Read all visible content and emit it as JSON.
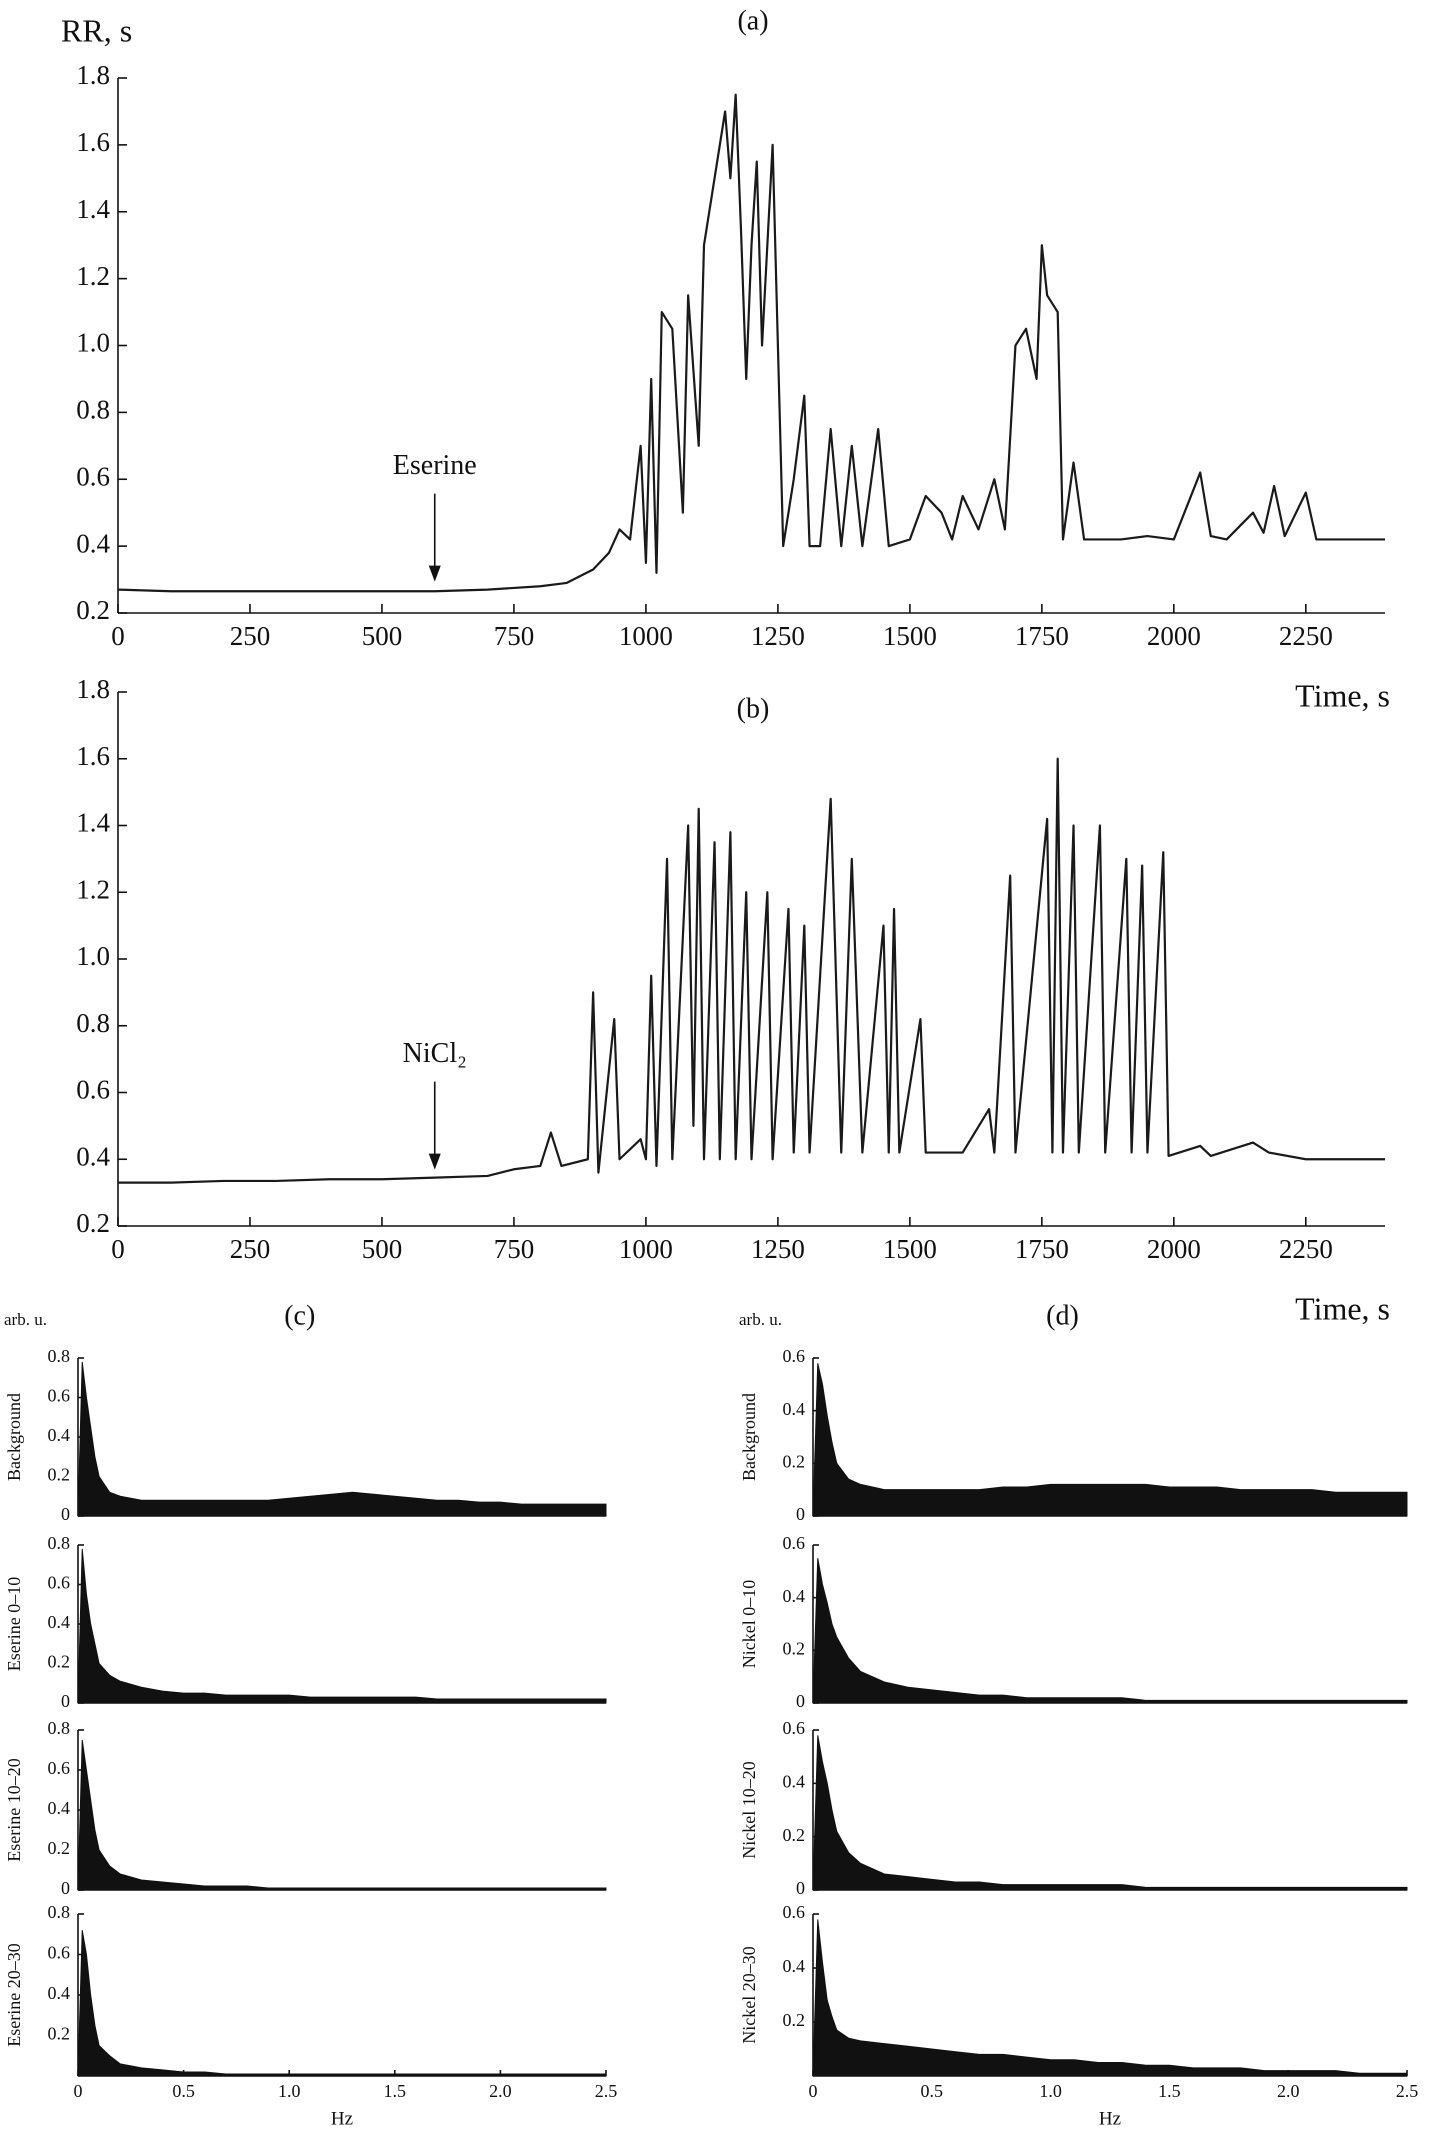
{
  "chart_data": [
    {
      "type": "line",
      "title": "(a)",
      "ylabel": "RR, s",
      "xlabel": "Time, s",
      "color": "#1a1a1a",
      "annotations": [
        {
          "text": "Eserine",
          "x": 600,
          "y": 0.27
        }
      ],
      "xlim": [
        0,
        2400
      ],
      "ylim": [
        0.2,
        1.8
      ],
      "xticks": [
        0,
        250,
        500,
        750,
        1000,
        1250,
        1500,
        1750,
        2000,
        2250
      ],
      "yticks": [
        0.2,
        0.4,
        0.6,
        0.8,
        {
          "value": 1,
          "label": "1.0"
        },
        1.2,
        1.4,
        1.6,
        1.8
      ],
      "x": [
        0,
        100,
        200,
        300,
        400,
        500,
        600,
        700,
        800,
        850,
        900,
        930,
        950,
        970,
        990,
        1000,
        1010,
        1020,
        1030,
        1050,
        1070,
        1080,
        1100,
        1110,
        1130,
        1150,
        1160,
        1170,
        1180,
        1190,
        1200,
        1210,
        1220,
        1240,
        1250,
        1260,
        1280,
        1300,
        1310,
        1330,
        1350,
        1370,
        1390,
        1410,
        1440,
        1460,
        1500,
        1530,
        1560,
        1580,
        1600,
        1630,
        1660,
        1680,
        1700,
        1720,
        1740,
        1750,
        1760,
        1780,
        1790,
        1810,
        1830,
        1900,
        1950,
        2000,
        2050,
        2070,
        2100,
        2150,
        2170,
        2190,
        2210,
        2250,
        2270,
        2330,
        2400
      ],
      "values": [
        0.27,
        0.265,
        0.265,
        0.265,
        0.265,
        0.265,
        0.265,
        0.27,
        0.28,
        0.29,
        0.33,
        0.38,
        0.45,
        0.42,
        0.7,
        0.35,
        0.9,
        0.32,
        1.1,
        1.05,
        0.5,
        1.15,
        0.7,
        1.3,
        1.5,
        1.7,
        1.5,
        1.75,
        1.35,
        0.9,
        1.3,
        1.55,
        1.0,
        1.6,
        1.0,
        0.4,
        0.6,
        0.85,
        0.4,
        0.4,
        0.75,
        0.4,
        0.7,
        0.4,
        0.75,
        0.4,
        0.42,
        0.55,
        0.5,
        0.42,
        0.55,
        0.45,
        0.6,
        0.45,
        1.0,
        1.05,
        0.9,
        1.3,
        1.15,
        1.1,
        0.42,
        0.65,
        0.42,
        0.42,
        0.43,
        0.42,
        0.62,
        0.43,
        0.42,
        0.5,
        0.44,
        0.58,
        0.43,
        0.56,
        0.42,
        0.42,
        0.42
      ]
    },
    {
      "type": "line",
      "title": "(b)",
      "xlabel": "Time, s",
      "color": "#1a1a1a",
      "annotations": [
        {
          "text": "NiCl₂",
          "x": 600,
          "y": 0.345
        }
      ],
      "xlim": [
        0,
        2400
      ],
      "ylim": [
        0.2,
        1.8
      ],
      "xticks": [
        0,
        250,
        500,
        750,
        1000,
        1250,
        1500,
        1750,
        2000,
        2250
      ],
      "yticks": [
        0.2,
        0.4,
        0.6,
        0.8,
        {
          "value": 1,
          "label": "1.0"
        },
        1.2,
        1.4,
        1.6,
        1.8
      ],
      "x": [
        0,
        100,
        200,
        300,
        400,
        500,
        600,
        700,
        750,
        800,
        820,
        840,
        890,
        900,
        910,
        940,
        950,
        990,
        1000,
        1010,
        1020,
        1040,
        1050,
        1080,
        1090,
        1100,
        1110,
        1130,
        1140,
        1160,
        1170,
        1190,
        1200,
        1230,
        1240,
        1270,
        1280,
        1300,
        1310,
        1350,
        1370,
        1390,
        1410,
        1450,
        1460,
        1470,
        1480,
        1520,
        1530,
        1560,
        1600,
        1650,
        1660,
        1690,
        1700,
        1760,
        1770,
        1780,
        1790,
        1810,
        1820,
        1860,
        1870,
        1910,
        1920,
        1940,
        1950,
        1980,
        1990,
        2050,
        2070,
        2150,
        2180,
        2250,
        2400
      ],
      "values": [
        0.33,
        0.33,
        0.335,
        0.335,
        0.34,
        0.34,
        0.345,
        0.35,
        0.37,
        0.38,
        0.48,
        0.38,
        0.4,
        0.9,
        0.36,
        0.82,
        0.4,
        0.46,
        0.4,
        0.95,
        0.38,
        1.3,
        0.4,
        1.4,
        0.5,
        1.45,
        0.4,
        1.35,
        0.4,
        1.38,
        0.4,
        1.2,
        0.4,
        1.2,
        0.4,
        1.15,
        0.42,
        1.1,
        0.42,
        1.48,
        0.42,
        1.3,
        0.42,
        1.1,
        0.42,
        1.15,
        0.42,
        0.82,
        0.42,
        0.42,
        0.42,
        0.55,
        0.42,
        1.25,
        0.42,
        1.42,
        0.42,
        1.6,
        0.42,
        1.4,
        0.42,
        1.4,
        0.42,
        1.3,
        0.42,
        1.28,
        0.42,
        1.32,
        0.41,
        0.44,
        0.41,
        0.45,
        0.42,
        0.4,
        0.4
      ]
    },
    {
      "type": "area",
      "title": "(c)",
      "y_unit": "arb. u.",
      "ylabel": "Background",
      "color": "#111",
      "xlim": [
        0,
        2.5
      ],
      "ylim": [
        0,
        0.8
      ],
      "yticks": [
        0,
        0.2,
        0.4,
        0.6,
        0.8
      ],
      "x": [
        0.02,
        0.04,
        0.06,
        0.08,
        0.1,
        0.15,
        0.2,
        0.3,
        0.4,
        0.5,
        0.6,
        0.7,
        0.8,
        0.9,
        1.0,
        1.1,
        1.2,
        1.3,
        1.4,
        1.5,
        1.6,
        1.7,
        1.8,
        1.9,
        2.0,
        2.1,
        2.2,
        2.3,
        2.4,
        2.5
      ],
      "values": [
        0.78,
        0.6,
        0.45,
        0.3,
        0.2,
        0.12,
        0.1,
        0.08,
        0.08,
        0.08,
        0.08,
        0.08,
        0.08,
        0.08,
        0.09,
        0.1,
        0.11,
        0.12,
        0.11,
        0.1,
        0.09,
        0.08,
        0.08,
        0.07,
        0.07,
        0.06,
        0.06,
        0.06,
        0.06,
        0.06
      ]
    },
    {
      "type": "area",
      "ylabel": "Eserine 0–10",
      "color": "#111",
      "xlim": [
        0,
        2.5
      ],
      "ylim": [
        0,
        0.8
      ],
      "yticks": [
        0,
        0.2,
        0.4,
        0.6,
        0.8
      ],
      "x": [
        0.02,
        0.04,
        0.06,
        0.08,
        0.1,
        0.15,
        0.2,
        0.3,
        0.4,
        0.5,
        0.6,
        0.7,
        0.8,
        0.9,
        1.0,
        1.1,
        1.2,
        1.3,
        1.4,
        1.5,
        1.6,
        1.7,
        1.8,
        1.9,
        2.0,
        2.1,
        2.2,
        2.3,
        2.4,
        2.5
      ],
      "values": [
        0.78,
        0.55,
        0.4,
        0.3,
        0.2,
        0.14,
        0.11,
        0.08,
        0.06,
        0.05,
        0.05,
        0.04,
        0.04,
        0.04,
        0.04,
        0.03,
        0.03,
        0.03,
        0.03,
        0.03,
        0.03,
        0.02,
        0.02,
        0.02,
        0.02,
        0.02,
        0.02,
        0.02,
        0.02,
        0.02
      ]
    },
    {
      "type": "area",
      "ylabel": "Eserine 10–20",
      "color": "#111",
      "xlim": [
        0,
        2.5
      ],
      "ylim": [
        0,
        0.8
      ],
      "yticks": [
        0,
        0.2,
        0.4,
        0.6,
        0.8
      ],
      "x": [
        0.02,
        0.04,
        0.06,
        0.08,
        0.1,
        0.15,
        0.2,
        0.3,
        0.4,
        0.5,
        0.6,
        0.7,
        0.8,
        0.9,
        1.0,
        1.1,
        1.2,
        1.3,
        1.4,
        1.5,
        1.6,
        1.7,
        1.8,
        1.9,
        2.0,
        2.1,
        2.2,
        2.3,
        2.4,
        2.5
      ],
      "values": [
        0.75,
        0.6,
        0.45,
        0.3,
        0.2,
        0.12,
        0.08,
        0.05,
        0.04,
        0.03,
        0.02,
        0.02,
        0.02,
        0.01,
        0.01,
        0.01,
        0.01,
        0.01,
        0.01,
        0.01,
        0.01,
        0.01,
        0.01,
        0.01,
        0.01,
        0.01,
        0.01,
        0.01,
        0.01,
        0.01
      ]
    },
    {
      "type": "area",
      "ylabel": "Eserine 20–30",
      "xlabel": "Hz",
      "color": "#111",
      "xlim": [
        0,
        2.5
      ],
      "ylim": [
        0,
        0.8
      ],
      "yticks": [
        0.2,
        0.4,
        0.6,
        0.8
      ],
      "xticks": [
        0,
        0.5,
        {
          "value": 1,
          "label": "1.0"
        },
        1.5,
        {
          "value": 2,
          "label": "2.0"
        },
        2.5
      ],
      "x": [
        0.02,
        0.04,
        0.06,
        0.08,
        0.1,
        0.15,
        0.2,
        0.3,
        0.4,
        0.5,
        0.6,
        0.7,
        0.8,
        0.9,
        1.0,
        1.1,
        1.2,
        1.3,
        1.4,
        1.5,
        1.6,
        1.7,
        1.8,
        1.9,
        2.0,
        2.1,
        2.2,
        2.3,
        2.4,
        2.5
      ],
      "values": [
        0.72,
        0.6,
        0.4,
        0.25,
        0.15,
        0.1,
        0.06,
        0.04,
        0.03,
        0.02,
        0.02,
        0.01,
        0.01,
        0.01,
        0.01,
        0.01,
        0.01,
        0.01,
        0.01,
        0.01,
        0.01,
        0.01,
        0.01,
        0.01,
        0.01,
        0.01,
        0.01,
        0.01,
        0.01,
        0.01
      ]
    },
    {
      "type": "area",
      "title": "(d)",
      "y_unit": "arb. u.",
      "ylabel": "Background",
      "color": "#111",
      "xlim": [
        0,
        2.5
      ],
      "ylim": [
        0,
        0.6
      ],
      "yticks": [
        0,
        0.2,
        0.4,
        0.6
      ],
      "x": [
        0.02,
        0.04,
        0.06,
        0.08,
        0.1,
        0.15,
        0.2,
        0.3,
        0.4,
        0.5,
        0.6,
        0.7,
        0.8,
        0.9,
        1.0,
        1.1,
        1.2,
        1.3,
        1.4,
        1.5,
        1.6,
        1.7,
        1.8,
        1.9,
        2.0,
        2.1,
        2.2,
        2.3,
        2.4,
        2.5
      ],
      "values": [
        0.58,
        0.5,
        0.38,
        0.28,
        0.2,
        0.14,
        0.12,
        0.1,
        0.1,
        0.1,
        0.1,
        0.1,
        0.11,
        0.11,
        0.12,
        0.12,
        0.12,
        0.12,
        0.12,
        0.11,
        0.11,
        0.11,
        0.1,
        0.1,
        0.1,
        0.1,
        0.09,
        0.09,
        0.09,
        0.09
      ]
    },
    {
      "type": "area",
      "ylabel": "Nickel 0–10",
      "color": "#111",
      "xlim": [
        0,
        2.5
      ],
      "ylim": [
        0,
        0.6
      ],
      "yticks": [
        0,
        0.2,
        0.4,
        0.6
      ],
      "x": [
        0.02,
        0.04,
        0.06,
        0.08,
        0.1,
        0.15,
        0.2,
        0.3,
        0.4,
        0.5,
        0.6,
        0.7,
        0.8,
        0.9,
        1.0,
        1.1,
        1.2,
        1.3,
        1.4,
        1.5,
        1.6,
        1.7,
        1.8,
        1.9,
        2.0,
        2.1,
        2.2,
        2.3,
        2.4,
        2.5
      ],
      "values": [
        0.55,
        0.45,
        0.38,
        0.3,
        0.25,
        0.17,
        0.12,
        0.08,
        0.06,
        0.05,
        0.04,
        0.03,
        0.03,
        0.02,
        0.02,
        0.02,
        0.02,
        0.02,
        0.01,
        0.01,
        0.01,
        0.01,
        0.01,
        0.01,
        0.01,
        0.01,
        0.01,
        0.01,
        0.01,
        0.01
      ]
    },
    {
      "type": "area",
      "ylabel": "Nickel 10–20",
      "color": "#111",
      "xlim": [
        0,
        2.5
      ],
      "ylim": [
        0,
        0.6
      ],
      "yticks": [
        0,
        0.2,
        0.4,
        0.6
      ],
      "x": [
        0.02,
        0.04,
        0.06,
        0.08,
        0.1,
        0.15,
        0.2,
        0.3,
        0.4,
        0.5,
        0.6,
        0.7,
        0.8,
        0.9,
        1.0,
        1.1,
        1.2,
        1.3,
        1.4,
        1.5,
        1.6,
        1.7,
        1.8,
        1.9,
        2.0,
        2.1,
        2.2,
        2.3,
        2.4,
        2.5
      ],
      "values": [
        0.58,
        0.48,
        0.4,
        0.3,
        0.22,
        0.14,
        0.1,
        0.06,
        0.05,
        0.04,
        0.03,
        0.03,
        0.02,
        0.02,
        0.02,
        0.02,
        0.02,
        0.02,
        0.01,
        0.01,
        0.01,
        0.01,
        0.01,
        0.01,
        0.01,
        0.01,
        0.01,
        0.01,
        0.01,
        0.01
      ]
    },
    {
      "type": "area",
      "ylabel": "Nickel 20–30",
      "xlabel": "Hz",
      "color": "#111",
      "xlim": [
        0,
        2.5
      ],
      "ylim": [
        0,
        0.6
      ],
      "yticks": [
        0.2,
        0.4,
        0.6
      ],
      "xticks": [
        0,
        0.5,
        {
          "value": 1,
          "label": "1.0"
        },
        1.5,
        {
          "value": 2,
          "label": "2.0"
        },
        2.5
      ],
      "x": [
        0.02,
        0.04,
        0.06,
        0.08,
        0.1,
        0.15,
        0.2,
        0.3,
        0.4,
        0.5,
        0.6,
        0.7,
        0.8,
        0.9,
        1.0,
        1.1,
        1.2,
        1.3,
        1.4,
        1.5,
        1.6,
        1.7,
        1.8,
        1.9,
        2.0,
        2.1,
        2.2,
        2.3,
        2.4,
        2.5
      ],
      "values": [
        0.58,
        0.42,
        0.28,
        0.22,
        0.17,
        0.14,
        0.13,
        0.12,
        0.11,
        0.1,
        0.09,
        0.08,
        0.08,
        0.07,
        0.06,
        0.06,
        0.05,
        0.05,
        0.04,
        0.04,
        0.03,
        0.03,
        0.03,
        0.02,
        0.02,
        0.02,
        0.02,
        0.01,
        0.01,
        0.01
      ]
    }
  ]
}
